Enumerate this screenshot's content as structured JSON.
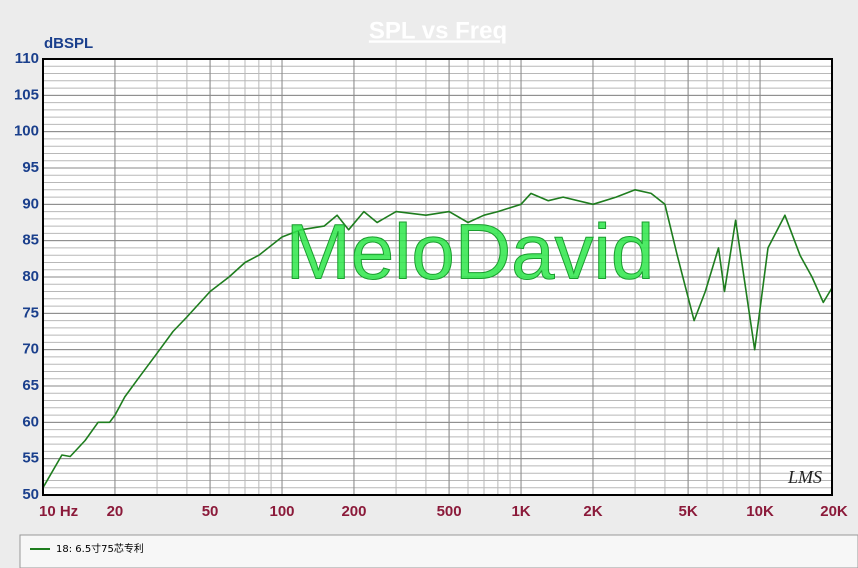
{
  "chart_data": {
    "type": "line",
    "title": "SPL vs Freq",
    "y_label": "dBSPL",
    "annotations": [
      "MeloDavid",
      "LMS"
    ],
    "log_x": true,
    "grid": true,
    "xlim": [
      10,
      20000
    ],
    "ylim": [
      50,
      110
    ],
    "xticks": [
      {
        "value": 10,
        "label": "10 Hz"
      },
      20,
      50,
      100,
      200,
      500,
      {
        "value": 1000,
        "label": "1K"
      },
      {
        "value": 2000,
        "label": "2K"
      },
      {
        "value": 5000,
        "label": "5K"
      },
      {
        "value": 10000,
        "label": "10K"
      },
      {
        "value": 20000,
        "label": "20K"
      }
    ],
    "yticks": [
      50,
      55,
      60,
      65,
      70,
      75,
      80,
      85,
      90,
      95,
      100,
      105,
      110
    ],
    "x": [
      10,
      12,
      13,
      15,
      17,
      19,
      20,
      22,
      25,
      30,
      35,
      40,
      50,
      60,
      70,
      80,
      100,
      120,
      150,
      170,
      190,
      220,
      250,
      300,
      400,
      500,
      600,
      700,
      800,
      1000,
      1100,
      1300,
      1500,
      2000,
      2500,
      3000,
      3500,
      4000,
      4500,
      5300,
      5900,
      6700,
      7100,
      7900,
      9500,
      10800,
      12700,
      14700,
      16500,
      18400,
      20000
    ],
    "series": [
      {
        "name": "18: 6.5寸75芯专利",
        "color": "#1e7d1e",
        "values": [
          51,
          55.5,
          55.3,
          57.5,
          60,
          60,
          61,
          63.5,
          66,
          69.5,
          72.5,
          74.5,
          78,
          80,
          82,
          83,
          85.5,
          86.5,
          87,
          88.5,
          86.5,
          89,
          87.5,
          89,
          88.5,
          89,
          87.5,
          88.5,
          89,
          90,
          91.5,
          90.5,
          91,
          90,
          91,
          92,
          91.5,
          90,
          83,
          74,
          78,
          84,
          78,
          87.8,
          70,
          84,
          88.5,
          83,
          80,
          76.5,
          78.5
        ]
      }
    ]
  }
}
